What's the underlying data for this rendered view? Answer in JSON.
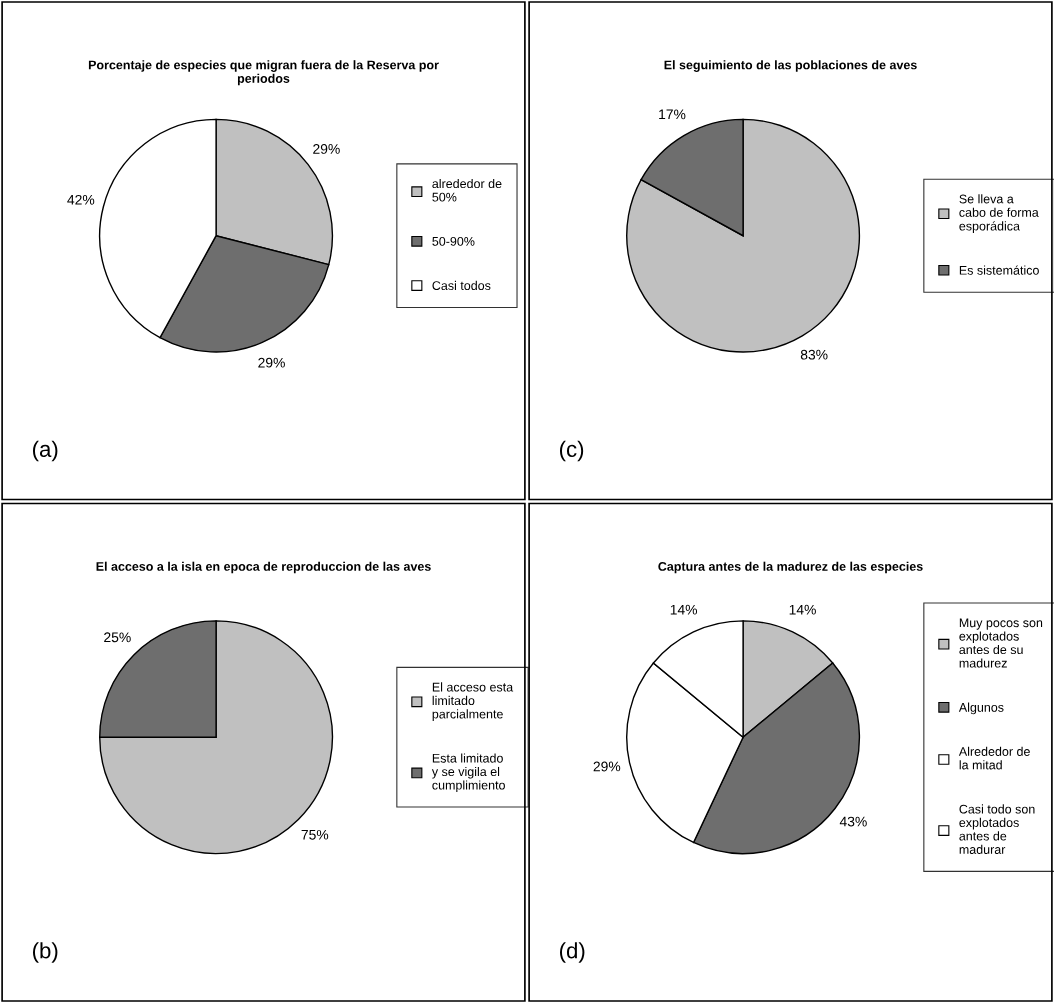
{
  "chart_data": [
    {
      "type": "pie",
      "title": "Porcentaje de especies que migran fuera de la Reserva por periodos",
      "categories": [
        "alrededor de 50%",
        "50-90%",
        "Casi todos"
      ],
      "values": [
        29,
        29,
        42
      ],
      "value_labels": [
        "29%",
        "29%",
        "42%"
      ],
      "colors": [
        "#c0c0c0",
        "#6e6e6e",
        "#ffffff"
      ],
      "legend": "right",
      "annotations": [
        "(a)"
      ]
    },
    {
      "type": "pie",
      "title": "El seguimiento de las poblaciones de aves",
      "categories": [
        "Se lleva a cabo de forma esporádica",
        "Es sistemático"
      ],
      "values": [
        83,
        17
      ],
      "value_labels": [
        "83%",
        "17%"
      ],
      "colors": [
        "#c0c0c0",
        "#6e6e6e"
      ],
      "legend": "right",
      "annotations": [
        "(c)"
      ]
    },
    {
      "type": "pie",
      "title": "El acceso a la isla en epoca de reproduccion de las aves",
      "categories": [
        "El acceso esta limitado parcialmente",
        "Esta limitado y se vigila el cumplimiento"
      ],
      "values": [
        75,
        25
      ],
      "value_labels": [
        "75%",
        "25%"
      ],
      "colors": [
        "#c0c0c0",
        "#6e6e6e"
      ],
      "legend": "right",
      "annotations": [
        "(b)"
      ]
    },
    {
      "type": "pie",
      "title": "Captura antes de la madurez de las especies",
      "categories": [
        "Muy pocos son explotados antes de su madurez",
        "Algunos",
        "Alrededor de la mitad",
        "Casi todo son explotados antes de madurar"
      ],
      "values": [
        14,
        43,
        29,
        14
      ],
      "value_labels": [
        "14%",
        "43%",
        "29%",
        "14%"
      ],
      "colors": [
        "#c0c0c0",
        "#6e6e6e",
        "#ffffff",
        "#ffffff"
      ],
      "legend": "right",
      "annotations": [
        "(d)"
      ]
    }
  ]
}
